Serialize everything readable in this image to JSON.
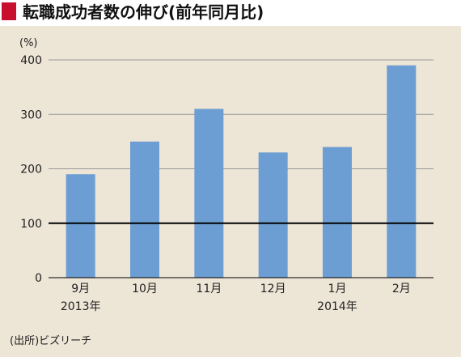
{
  "title": "転職成功者数の伸び(前年同月比)",
  "source": "(出所)ビズリーチ",
  "colors": {
    "accent": "#c8102e",
    "bar": "#6d9ed3",
    "panel": "#ede5d6",
    "grid": "#9a9a9a",
    "baseline": "#000000"
  },
  "chart_data": {
    "type": "bar",
    "unit_label": "(%)",
    "categories": [
      "9月",
      "10月",
      "11月",
      "12月",
      "1月",
      "2月"
    ],
    "year_labels": [
      "2013年",
      "",
      "",
      "",
      "2014年",
      ""
    ],
    "values": [
      190,
      250,
      310,
      230,
      240,
      390
    ],
    "ylim": [
      0,
      400
    ],
    "yticks": [
      0,
      100,
      200,
      300,
      400
    ],
    "reference_line": 100,
    "grid": true,
    "legend": "none"
  }
}
